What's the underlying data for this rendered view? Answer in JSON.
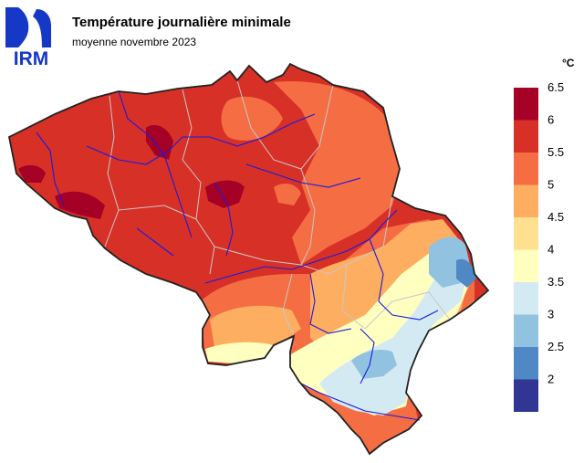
{
  "header": {
    "logo_text": "IRM",
    "title": "Température journalière minimale",
    "subtitle": "moyenne novembre 2023"
  },
  "legend": {
    "unit": "°C",
    "classes": [
      {
        "from": 6.0,
        "to": 6.5,
        "color": "#a50026"
      },
      {
        "from": 5.5,
        "to": 6.0,
        "color": "#d73027"
      },
      {
        "from": 5.0,
        "to": 5.5,
        "color": "#f46d43"
      },
      {
        "from": 4.5,
        "to": 5.0,
        "color": "#fdae61"
      },
      {
        "from": 4.0,
        "to": 4.5,
        "color": "#fee090"
      },
      {
        "from": 3.5,
        "to": 4.0,
        "color": "#ffffbf"
      },
      {
        "from": 3.0,
        "to": 3.5,
        "color": "#d4eaf3"
      },
      {
        "from": 2.5,
        "to": 3.0,
        "color": "#91c3e0"
      },
      {
        "from": 2.0,
        "to": 2.5,
        "color": "#4f88c4"
      },
      {
        "from": 1.5,
        "to": 2.0,
        "color": "#313695"
      }
    ],
    "tick_labels": [
      "6.5",
      "6",
      "5.5",
      "5",
      "4.5",
      "4",
      "3.5",
      "3",
      "2.5",
      "2"
    ]
  }
}
